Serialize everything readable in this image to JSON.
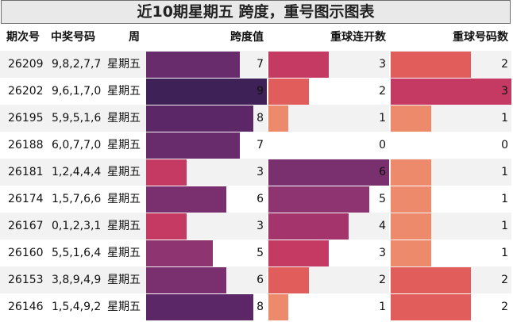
{
  "title": "近10期星期五 跨度，重号图示图表",
  "headers": {
    "period": "期次号",
    "numbers": "中奖号码",
    "weekday": "周",
    "span": "跨度值",
    "consecutive": "重球连开数",
    "repeat_count": "重球号码数"
  },
  "colors": {
    "level_0": "#ffffff",
    "level_1": "#ee8a6c",
    "level_2": "#e05d5c",
    "level_3": "#c43a63",
    "level_4": "#a3356c",
    "level_5": "#8e3470",
    "level_6": "#7a2f6e",
    "level_7": "#682b6b",
    "level_8": "#5b2766",
    "level_9": "#3e2257",
    "row_alt": "#f2f2f2"
  },
  "chart_data": {
    "type": "table",
    "columns": [
      "期次号",
      "中奖号码",
      "周",
      "跨度值",
      "重球连开数",
      "重球号码数"
    ],
    "rows": [
      {
        "period": "26209",
        "numbers": "9,8,2,7,7",
        "weekday": "星期五",
        "span": 7,
        "consecutive": 3,
        "repeat_count": 2
      },
      {
        "period": "26202",
        "numbers": "9,6,1,7,0",
        "weekday": "星期五",
        "span": 9,
        "consecutive": 2,
        "repeat_count": 3
      },
      {
        "period": "26195",
        "numbers": "5,9,5,1,6",
        "weekday": "星期五",
        "span": 8,
        "consecutive": 1,
        "repeat_count": 1
      },
      {
        "period": "26188",
        "numbers": "6,0,7,7,0",
        "weekday": "星期五",
        "span": 7,
        "consecutive": 0,
        "repeat_count": 0
      },
      {
        "period": "26181",
        "numbers": "1,2,4,4,4",
        "weekday": "星期五",
        "span": 3,
        "consecutive": 6,
        "repeat_count": 1
      },
      {
        "period": "26174",
        "numbers": "1,5,7,6,6",
        "weekday": "星期五",
        "span": 6,
        "consecutive": 5,
        "repeat_count": 1
      },
      {
        "period": "26167",
        "numbers": "0,1,2,3,1",
        "weekday": "星期五",
        "span": 3,
        "consecutive": 4,
        "repeat_count": 1
      },
      {
        "period": "26160",
        "numbers": "5,5,1,6,4",
        "weekday": "星期五",
        "span": 5,
        "consecutive": 3,
        "repeat_count": 1
      },
      {
        "period": "26153",
        "numbers": "3,8,9,4,9",
        "weekday": "星期五",
        "span": 6,
        "consecutive": 2,
        "repeat_count": 2
      },
      {
        "period": "26146",
        "numbers": "1,5,4,9,2",
        "weekday": "星期五",
        "span": 8,
        "consecutive": 1,
        "repeat_count": 2
      }
    ],
    "scales": {
      "span_max": 9,
      "consecutive_max": 6,
      "repeat_count_max": 3
    }
  }
}
